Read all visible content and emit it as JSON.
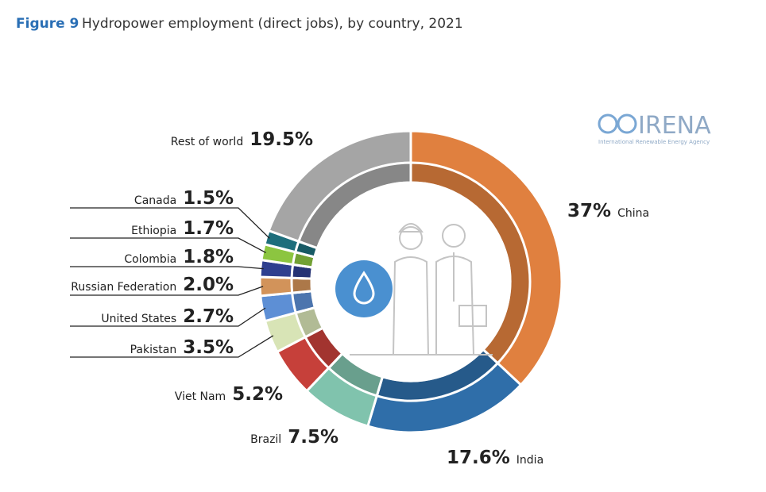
{
  "chart_data": {
    "type": "donut",
    "figure_label": "Figure 9",
    "title": "Hydropower employment (direct jobs), by country, 2021",
    "logo": {
      "name": "IRENA",
      "subtitle": "International Renewable Energy Agency"
    },
    "categories": [
      "China",
      "India",
      "Brazil",
      "Viet Nam",
      "Pakistan",
      "United States",
      "Russian Federation",
      "Colombia",
      "Ethiopia",
      "Canada",
      "Rest of world"
    ],
    "values": [
      37,
      17.6,
      7.5,
      5.2,
      3.5,
      2.7,
      2.0,
      1.8,
      1.7,
      1.5,
      19.5
    ],
    "value_labels": [
      "37%",
      "17.6%",
      "7.5%",
      "5.2%",
      "3.5%",
      "2.7%",
      "2.0%",
      "1.8%",
      "1.7%",
      "1.5%",
      "19.5%"
    ],
    "colors": [
      "#e0803f",
      "#2f6ea9",
      "#80c3ad",
      "#c6403a",
      "#d8e4b6",
      "#5d8fd5",
      "#d2935a",
      "#2e3f8f",
      "#8cc540",
      "#1d6e7c",
      "#a5a5a5"
    ]
  }
}
